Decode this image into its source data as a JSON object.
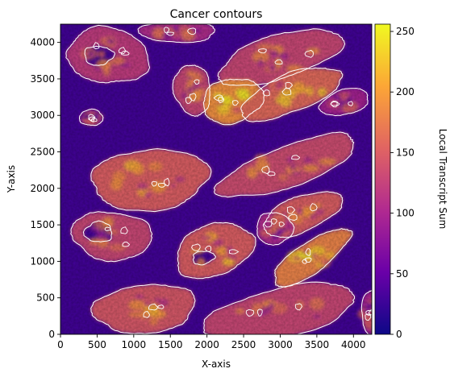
{
  "chart_data": {
    "type": "heatmap",
    "title": "Cancer contours",
    "xlabel": "X-axis",
    "ylabel": "Y-axis",
    "xlim": [
      0,
      4250
    ],
    "ylim": [
      0,
      4250
    ],
    "x_ticks": [
      0,
      500,
      1000,
      1500,
      2000,
      2500,
      3000,
      3500,
      4000
    ],
    "y_ticks": [
      0,
      500,
      1000,
      1500,
      2000,
      2500,
      3000,
      3500,
      4000
    ],
    "colorbar": {
      "label": "Local Transcript Sum",
      "range": [
        0,
        256
      ],
      "ticks": [
        0,
        50,
        100,
        150,
        200,
        250
      ],
      "colormap": "plasma"
    },
    "colormap_stops": [
      "#0d0887",
      "#6a00a8",
      "#b12a90",
      "#e16462",
      "#fca636",
      "#f0f921"
    ],
    "contour_color": "#ffffff",
    "background_level": 30,
    "regions": [
      {
        "cx": 650,
        "cy": 3820,
        "rx": 560,
        "ry": 380,
        "rot": -8,
        "level": 120,
        "holes": [
          {
            "cx": 520,
            "cy": 3820,
            "rx": 200,
            "ry": 130,
            "rot": 0
          }
        ]
      },
      {
        "cx": 1600,
        "cy": 4150,
        "rx": 520,
        "ry": 150,
        "rot": 0,
        "level": 105
      },
      {
        "cx": 3000,
        "cy": 3800,
        "rx": 880,
        "ry": 300,
        "rot": 17,
        "level": 130
      },
      {
        "cx": 1800,
        "cy": 3350,
        "rx": 250,
        "ry": 350,
        "rot": 10,
        "level": 130
      },
      {
        "cx": 2350,
        "cy": 3200,
        "rx": 420,
        "ry": 300,
        "rot": 15,
        "level": 190
      },
      {
        "cx": 3150,
        "cy": 3300,
        "rx": 730,
        "ry": 260,
        "rot": 22,
        "level": 160
      },
      {
        "cx": 3880,
        "cy": 3180,
        "rx": 340,
        "ry": 170,
        "rot": 15,
        "level": 95
      },
      {
        "cx": 420,
        "cy": 2970,
        "rx": 160,
        "ry": 110,
        "rot": 0,
        "level": 80
      },
      {
        "cx": 1220,
        "cy": 2120,
        "rx": 800,
        "ry": 420,
        "rot": 5,
        "level": 150
      },
      {
        "cx": 3100,
        "cy": 2300,
        "rx": 1000,
        "ry": 280,
        "rot": 20,
        "level": 135
      },
      {
        "cx": 3300,
        "cy": 1650,
        "rx": 570,
        "ry": 240,
        "rot": 22,
        "level": 150
      },
      {
        "cx": 2920,
        "cy": 1450,
        "rx": 250,
        "ry": 220,
        "rot": 0,
        "level": 105
      },
      {
        "cx": 700,
        "cy": 1350,
        "rx": 550,
        "ry": 330,
        "rot": -5,
        "level": 130,
        "holes": [
          {
            "cx": 520,
            "cy": 1400,
            "rx": 190,
            "ry": 140,
            "rot": 0
          }
        ]
      },
      {
        "cx": 2100,
        "cy": 1150,
        "rx": 550,
        "ry": 350,
        "rot": 20,
        "level": 150,
        "holes": [
          {
            "cx": 1950,
            "cy": 1050,
            "rx": 150,
            "ry": 90,
            "rot": 10
          }
        ]
      },
      {
        "cx": 3420,
        "cy": 1050,
        "rx": 620,
        "ry": 210,
        "rot": 35,
        "level": 180
      },
      {
        "cx": 1150,
        "cy": 350,
        "rx": 700,
        "ry": 330,
        "rot": 5,
        "level": 145
      },
      {
        "cx": 3000,
        "cy": 300,
        "rx": 1050,
        "ry": 330,
        "rot": 12,
        "level": 130
      },
      {
        "cx": 4250,
        "cy": 300,
        "rx": 140,
        "ry": 300,
        "rot": 0,
        "level": 100
      }
    ]
  }
}
